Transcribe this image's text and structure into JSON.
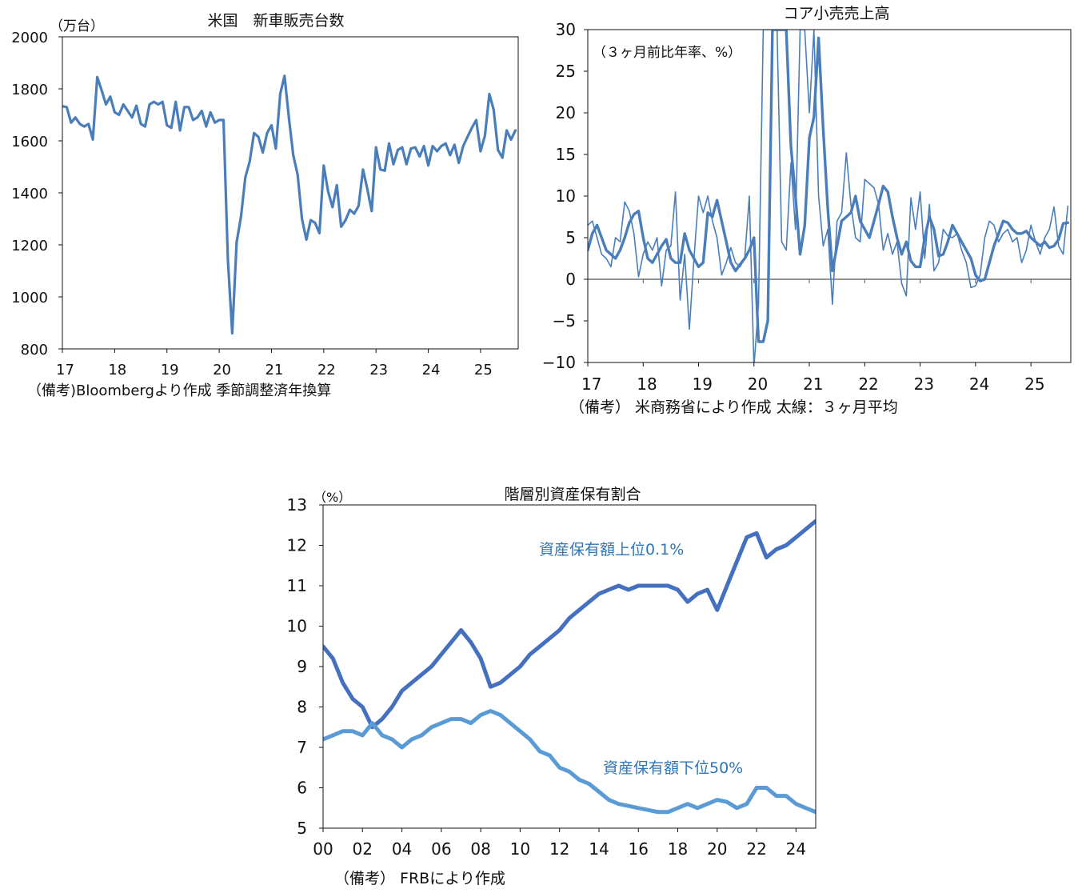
{
  "chart_data": [
    {
      "type": "line",
      "title": "米国　新車販売台数",
      "unit_label": "（万台）",
      "note": "（備考)Bloombergより作成 季節調整済年換算",
      "ylim": [
        800,
        2000
      ],
      "yticks": [
        "2000",
        "1800",
        "1600",
        "1400",
        "1200",
        "1000",
        "800"
      ],
      "xlim": [
        2017,
        2025.72
      ],
      "xticks": [
        {
          "x": 2017,
          "label": "17"
        },
        {
          "x": 2018,
          "label": "18"
        },
        {
          "x": 2019,
          "label": "19"
        },
        {
          "x": 2020,
          "label": "20"
        },
        {
          "x": 2021,
          "label": "21"
        },
        {
          "x": 2022,
          "label": "22"
        },
        {
          "x": 2023,
          "label": "23"
        },
        {
          "x": 2024,
          "label": "24"
        },
        {
          "x": 2025,
          "label": "25"
        }
      ],
      "color": "#4a7ebb",
      "series": [
        {
          "x": [
            2017.0,
            2017.083,
            2017.167,
            2017.25,
            2017.333,
            2017.417,
            2017.5,
            2017.583,
            2017.667,
            2017.75,
            2017.833,
            2017.917,
            2018.0,
            2018.083,
            2018.167,
            2018.25,
            2018.333,
            2018.417,
            2018.5,
            2018.583,
            2018.667,
            2018.75,
            2018.833,
            2018.917,
            2019.0,
            2019.083,
            2019.167,
            2019.25,
            2019.333,
            2019.417,
            2019.5,
            2019.583,
            2019.667,
            2019.75,
            2019.833,
            2019.917,
            2020.0,
            2020.083,
            2020.167,
            2020.25,
            2020.333,
            2020.417,
            2020.5,
            2020.583,
            2020.667,
            2020.75,
            2020.833,
            2020.917,
            2021.0,
            2021.083,
            2021.167,
            2021.25,
            2021.333,
            2021.417,
            2021.5,
            2021.583,
            2021.667,
            2021.75,
            2021.833,
            2021.917,
            2022.0,
            2022.083,
            2022.167,
            2022.25,
            2022.333,
            2022.417,
            2022.5,
            2022.583,
            2022.667,
            2022.75,
            2022.833,
            2022.917,
            2023.0,
            2023.083,
            2023.167,
            2023.25,
            2023.333,
            2023.417,
            2023.5,
            2023.583,
            2023.667,
            2023.75,
            2023.833,
            2023.917,
            2024.0,
            2024.083,
            2024.167,
            2024.25,
            2024.333,
            2024.417,
            2024.5,
            2024.583,
            2024.667,
            2024.75,
            2024.833,
            2024.917,
            2025.0,
            2025.083,
            2025.167,
            2025.25,
            2025.333,
            2025.417,
            2025.5,
            2025.583,
            2025.667
          ],
          "y": [
            1733,
            1730,
            1670,
            1690,
            1665,
            1655,
            1665,
            1605,
            1845,
            1795,
            1740,
            1770,
            1710,
            1700,
            1740,
            1715,
            1690,
            1735,
            1665,
            1655,
            1740,
            1750,
            1740,
            1750,
            1660,
            1650,
            1750,
            1640,
            1730,
            1730,
            1680,
            1690,
            1715,
            1655,
            1710,
            1670,
            1680,
            1680,
            1140,
            860,
            1210,
            1310,
            1460,
            1520,
            1630,
            1615,
            1555,
            1630,
            1660,
            1570,
            1780,
            1850,
            1690,
            1545,
            1470,
            1300,
            1220,
            1295,
            1285,
            1245,
            1505,
            1405,
            1345,
            1430,
            1270,
            1295,
            1335,
            1320,
            1350,
            1490,
            1415,
            1330,
            1575,
            1490,
            1485,
            1590,
            1510,
            1565,
            1575,
            1510,
            1570,
            1575,
            1540,
            1580,
            1505,
            1580,
            1560,
            1580,
            1590,
            1545,
            1585,
            1515,
            1580,
            1615,
            1650,
            1680,
            1560,
            1620,
            1780,
            1720,
            1565,
            1535,
            1640,
            1605,
            1640
          ]
        }
      ]
    },
    {
      "type": "line",
      "title": "コア小売売上高",
      "unit_label": "（３ヶ月前比年率、%）",
      "note": "（備考） 米商務省により作成 太線：３ヶ月平均",
      "ylim": [
        -10,
        30
      ],
      "yticks": [
        "30",
        "25",
        "20",
        "15",
        "10",
        "5",
        "0",
        "−5",
        "−10"
      ],
      "xlim": [
        2017,
        2025.72
      ],
      "xticks": [
        {
          "x": 2017,
          "label": "17"
        },
        {
          "x": 2018,
          "label": "18"
        },
        {
          "x": 2019,
          "label": "19"
        },
        {
          "x": 2020,
          "label": "20"
        },
        {
          "x": 2021,
          "label": "21"
        },
        {
          "x": 2022,
          "label": "22"
        },
        {
          "x": 2023,
          "label": "23"
        },
        {
          "x": 2024,
          "label": "24"
        },
        {
          "x": 2025,
          "label": "25"
        }
      ],
      "color": "#4a7ebb",
      "series": [
        {
          "style": "thin",
          "x": [
            2017.0,
            2017.083,
            2017.167,
            2017.25,
            2017.333,
            2017.417,
            2017.5,
            2017.583,
            2017.667,
            2017.75,
            2017.833,
            2017.917,
            2018.0,
            2018.083,
            2018.167,
            2018.25,
            2018.333,
            2018.417,
            2018.5,
            2018.583,
            2018.667,
            2018.75,
            2018.833,
            2018.917,
            2019.0,
            2019.083,
            2019.167,
            2019.25,
            2019.333,
            2019.417,
            2019.5,
            2019.583,
            2019.667,
            2019.75,
            2019.833,
            2019.917,
            2020.0,
            2020.083,
            2020.167,
            2020.25,
            2020.333,
            2020.417,
            2020.5,
            2020.583,
            2020.667,
            2020.75,
            2020.833,
            2020.917,
            2021.0,
            2021.083,
            2021.167,
            2021.25,
            2021.333,
            2021.417,
            2021.5,
            2021.583,
            2021.667,
            2021.75,
            2021.833,
            2021.917,
            2022.0,
            2022.083,
            2022.167,
            2022.25,
            2022.333,
            2022.417,
            2022.5,
            2022.583,
            2022.667,
            2022.75,
            2022.833,
            2022.917,
            2023.0,
            2023.083,
            2023.167,
            2023.25,
            2023.333,
            2023.417,
            2023.5,
            2023.583,
            2023.667,
            2023.75,
            2023.833,
            2023.917,
            2024.0,
            2024.083,
            2024.167,
            2024.25,
            2024.333,
            2024.417,
            2024.5,
            2024.583,
            2024.667,
            2024.75,
            2024.833,
            2024.917,
            2025.0,
            2025.083,
            2025.167,
            2025.25,
            2025.333,
            2025.417,
            2025.5,
            2025.583,
            2025.667
          ],
          "y": [
            6.5,
            7,
            5,
            3,
            2.5,
            1.5,
            5,
            4.5,
            9.3,
            8.2,
            5.5,
            0.3,
            3,
            4.5,
            3.5,
            5,
            -0.8,
            3.5,
            4,
            10.5,
            -2.5,
            3,
            -6,
            2.5,
            10,
            8,
            10,
            7,
            5,
            0.5,
            2,
            3.8,
            2,
            1.5,
            2.5,
            10,
            -10.5,
            -3,
            30,
            30,
            30,
            30,
            4.5,
            3.5,
            14,
            6,
            30,
            30,
            20,
            30,
            10,
            4,
            6,
            -3,
            7,
            8,
            15.2,
            9,
            5,
            4.5,
            12,
            11.5,
            11,
            9,
            3.5,
            5.5,
            3,
            4.5,
            -0.5,
            -2,
            9.8,
            6,
            10.5,
            2.5,
            9,
            1,
            2,
            6,
            5.2,
            5,
            5.5,
            3.5,
            2,
            -1,
            -0.8,
            0.5,
            5,
            7,
            6.5,
            4.5,
            5.5,
            6,
            4.5,
            5,
            2,
            3.5,
            6.5,
            4.5,
            3,
            5,
            6,
            8.7,
            4,
            3,
            8.8
          ]
        },
        {
          "style": "thick",
          "x": [
            2017.0,
            2017.083,
            2017.167,
            2017.25,
            2017.333,
            2017.417,
            2017.5,
            2017.583,
            2017.667,
            2017.75,
            2017.833,
            2017.917,
            2018.0,
            2018.083,
            2018.167,
            2018.25,
            2018.333,
            2018.417,
            2018.5,
            2018.583,
            2018.667,
            2018.75,
            2018.833,
            2018.917,
            2019.0,
            2019.083,
            2019.167,
            2019.25,
            2019.333,
            2019.417,
            2019.5,
            2019.583,
            2019.667,
            2019.75,
            2019.833,
            2019.917,
            2020.0,
            2020.083,
            2020.167,
            2020.25,
            2020.333,
            2020.417,
            2020.5,
            2020.583,
            2020.667,
            2020.75,
            2020.833,
            2020.917,
            2021.0,
            2021.083,
            2021.167,
            2021.25,
            2021.333,
            2021.417,
            2021.5,
            2021.583,
            2021.667,
            2021.75,
            2021.833,
            2021.917,
            2022.0,
            2022.083,
            2022.167,
            2022.25,
            2022.333,
            2022.417,
            2022.5,
            2022.583,
            2022.667,
            2022.75,
            2022.833,
            2022.917,
            2023.0,
            2023.083,
            2023.167,
            2023.25,
            2023.333,
            2023.417,
            2023.5,
            2023.583,
            2023.667,
            2023.75,
            2023.833,
            2023.917,
            2024.0,
            2024.083,
            2024.167,
            2024.25,
            2024.333,
            2024.417,
            2024.5,
            2024.583,
            2024.667,
            2024.75,
            2024.833,
            2024.917,
            2025.0,
            2025.083,
            2025.167,
            2025.25,
            2025.333,
            2025.417,
            2025.5,
            2025.583,
            2025.667
          ],
          "y": [
            3.5,
            5.5,
            6.5,
            5,
            3.5,
            3,
            2.5,
            3.5,
            5,
            6.8,
            7.8,
            8.2,
            5,
            2.5,
            2,
            3,
            4,
            4.8,
            2.5,
            2,
            2,
            5.5,
            3.5,
            2.5,
            1.5,
            2,
            8,
            7.5,
            9.5,
            7,
            4.5,
            2,
            1,
            1.8,
            2.5,
            3.5,
            5,
            -7.5,
            -7.5,
            -5,
            30,
            30,
            30,
            30,
            16,
            10,
            3,
            6.5,
            17,
            19.5,
            29,
            18,
            8.5,
            1,
            4,
            7,
            7.5,
            8,
            10,
            7,
            6,
            5,
            7,
            9,
            11.2,
            10.5,
            7.5,
            5,
            3,
            4.5,
            2.2,
            1.5,
            1.5,
            5,
            7.5,
            6,
            2.8,
            3,
            4.5,
            6.5,
            5.5,
            4.5,
            3.5,
            2.5,
            0.5,
            -0.2,
            0,
            2,
            4,
            5.5,
            7,
            6.8,
            6,
            5.5,
            5.5,
            5.8,
            5,
            4.5,
            4,
            4.5,
            3.8,
            4,
            4.8,
            6.7,
            6.8
          ]
        }
      ]
    },
    {
      "type": "line",
      "title": "階層別資産保有割合",
      "unit_label": "（%）",
      "note": "（備考） FRBにより作成",
      "ylim": [
        5,
        13
      ],
      "yticks": [
        "13",
        "12",
        "11",
        "10",
        "9",
        "8",
        "7",
        "6",
        "5"
      ],
      "xlim": [
        2000,
        2025
      ],
      "xticks": [
        {
          "x": 2000,
          "label": "00"
        },
        {
          "x": 2002,
          "label": "02"
        },
        {
          "x": 2004,
          "label": "04"
        },
        {
          "x": 2006,
          "label": "06"
        },
        {
          "x": 2008,
          "label": "08"
        },
        {
          "x": 2010,
          "label": "10"
        },
        {
          "x": 2012,
          "label": "12"
        },
        {
          "x": 2014,
          "label": "14"
        },
        {
          "x": 2016,
          "label": "16"
        },
        {
          "x": 2018,
          "label": "18"
        },
        {
          "x": 2020,
          "label": "20"
        },
        {
          "x": 2022,
          "label": "22"
        },
        {
          "x": 2024,
          "label": "24"
        }
      ],
      "series": [
        {
          "name": "資産保有額上位0.1%",
          "color": "#4570bf",
          "x": [
            2000,
            2000.5,
            2001,
            2001.5,
            2002,
            2002.5,
            2003,
            2003.5,
            2004,
            2004.5,
            2005,
            2005.5,
            2006,
            2006.5,
            2007,
            2007.5,
            2008,
            2008.5,
            2009,
            2009.5,
            2010,
            2010.5,
            2011,
            2011.5,
            2012,
            2012.5,
            2013,
            2013.5,
            2014,
            2014.5,
            2015,
            2015.5,
            2016,
            2016.5,
            2017,
            2017.5,
            2018,
            2018.5,
            2019,
            2019.5,
            2020,
            2020.5,
            2021,
            2021.5,
            2022,
            2022.5,
            2023,
            2023.5,
            2024,
            2024.5,
            2025
          ],
          "y": [
            9.5,
            9.2,
            8.6,
            8.2,
            8.0,
            7.5,
            7.7,
            8.0,
            8.4,
            8.6,
            8.8,
            9.0,
            9.3,
            9.6,
            9.9,
            9.6,
            9.2,
            8.5,
            8.6,
            8.8,
            9.0,
            9.3,
            9.5,
            9.7,
            9.9,
            10.2,
            10.4,
            10.6,
            10.8,
            10.9,
            11.0,
            10.9,
            11.0,
            11.0,
            11.0,
            11.0,
            10.9,
            10.6,
            10.8,
            10.9,
            10.4,
            11.0,
            11.6,
            12.2,
            12.3,
            11.7,
            11.9,
            12.0,
            12.2,
            12.4,
            12.6
          ]
        },
        {
          "name": "資産保有額下位50%",
          "color": "#5b9bd5",
          "x": [
            2000,
            2000.5,
            2001,
            2001.5,
            2002,
            2002.5,
            2003,
            2003.5,
            2004,
            2004.5,
            2005,
            2005.5,
            2006,
            2006.5,
            2007,
            2007.5,
            2008,
            2008.5,
            2009,
            2009.5,
            2010,
            2010.5,
            2011,
            2011.5,
            2012,
            2012.5,
            2013,
            2013.5,
            2014,
            2014.5,
            2015,
            2015.5,
            2016,
            2016.5,
            2017,
            2017.5,
            2018,
            2018.5,
            2019,
            2019.5,
            2020,
            2020.5,
            2021,
            2021.5,
            2022,
            2022.5,
            2023,
            2023.5,
            2024,
            2024.5,
            2025
          ],
          "y": [
            7.2,
            7.3,
            7.4,
            7.4,
            7.3,
            7.6,
            7.3,
            7.2,
            7.0,
            7.2,
            7.3,
            7.5,
            7.6,
            7.7,
            7.7,
            7.6,
            7.8,
            7.9,
            7.8,
            7.6,
            7.4,
            7.2,
            6.9,
            6.8,
            6.5,
            6.4,
            6.2,
            6.1,
            5.9,
            5.7,
            5.6,
            5.55,
            5.5,
            5.45,
            5.4,
            5.4,
            5.5,
            5.6,
            5.5,
            5.6,
            5.7,
            5.65,
            5.5,
            5.6,
            6.0,
            6.0,
            5.8,
            5.8,
            5.6,
            5.5,
            5.4
          ]
        }
      ]
    }
  ]
}
